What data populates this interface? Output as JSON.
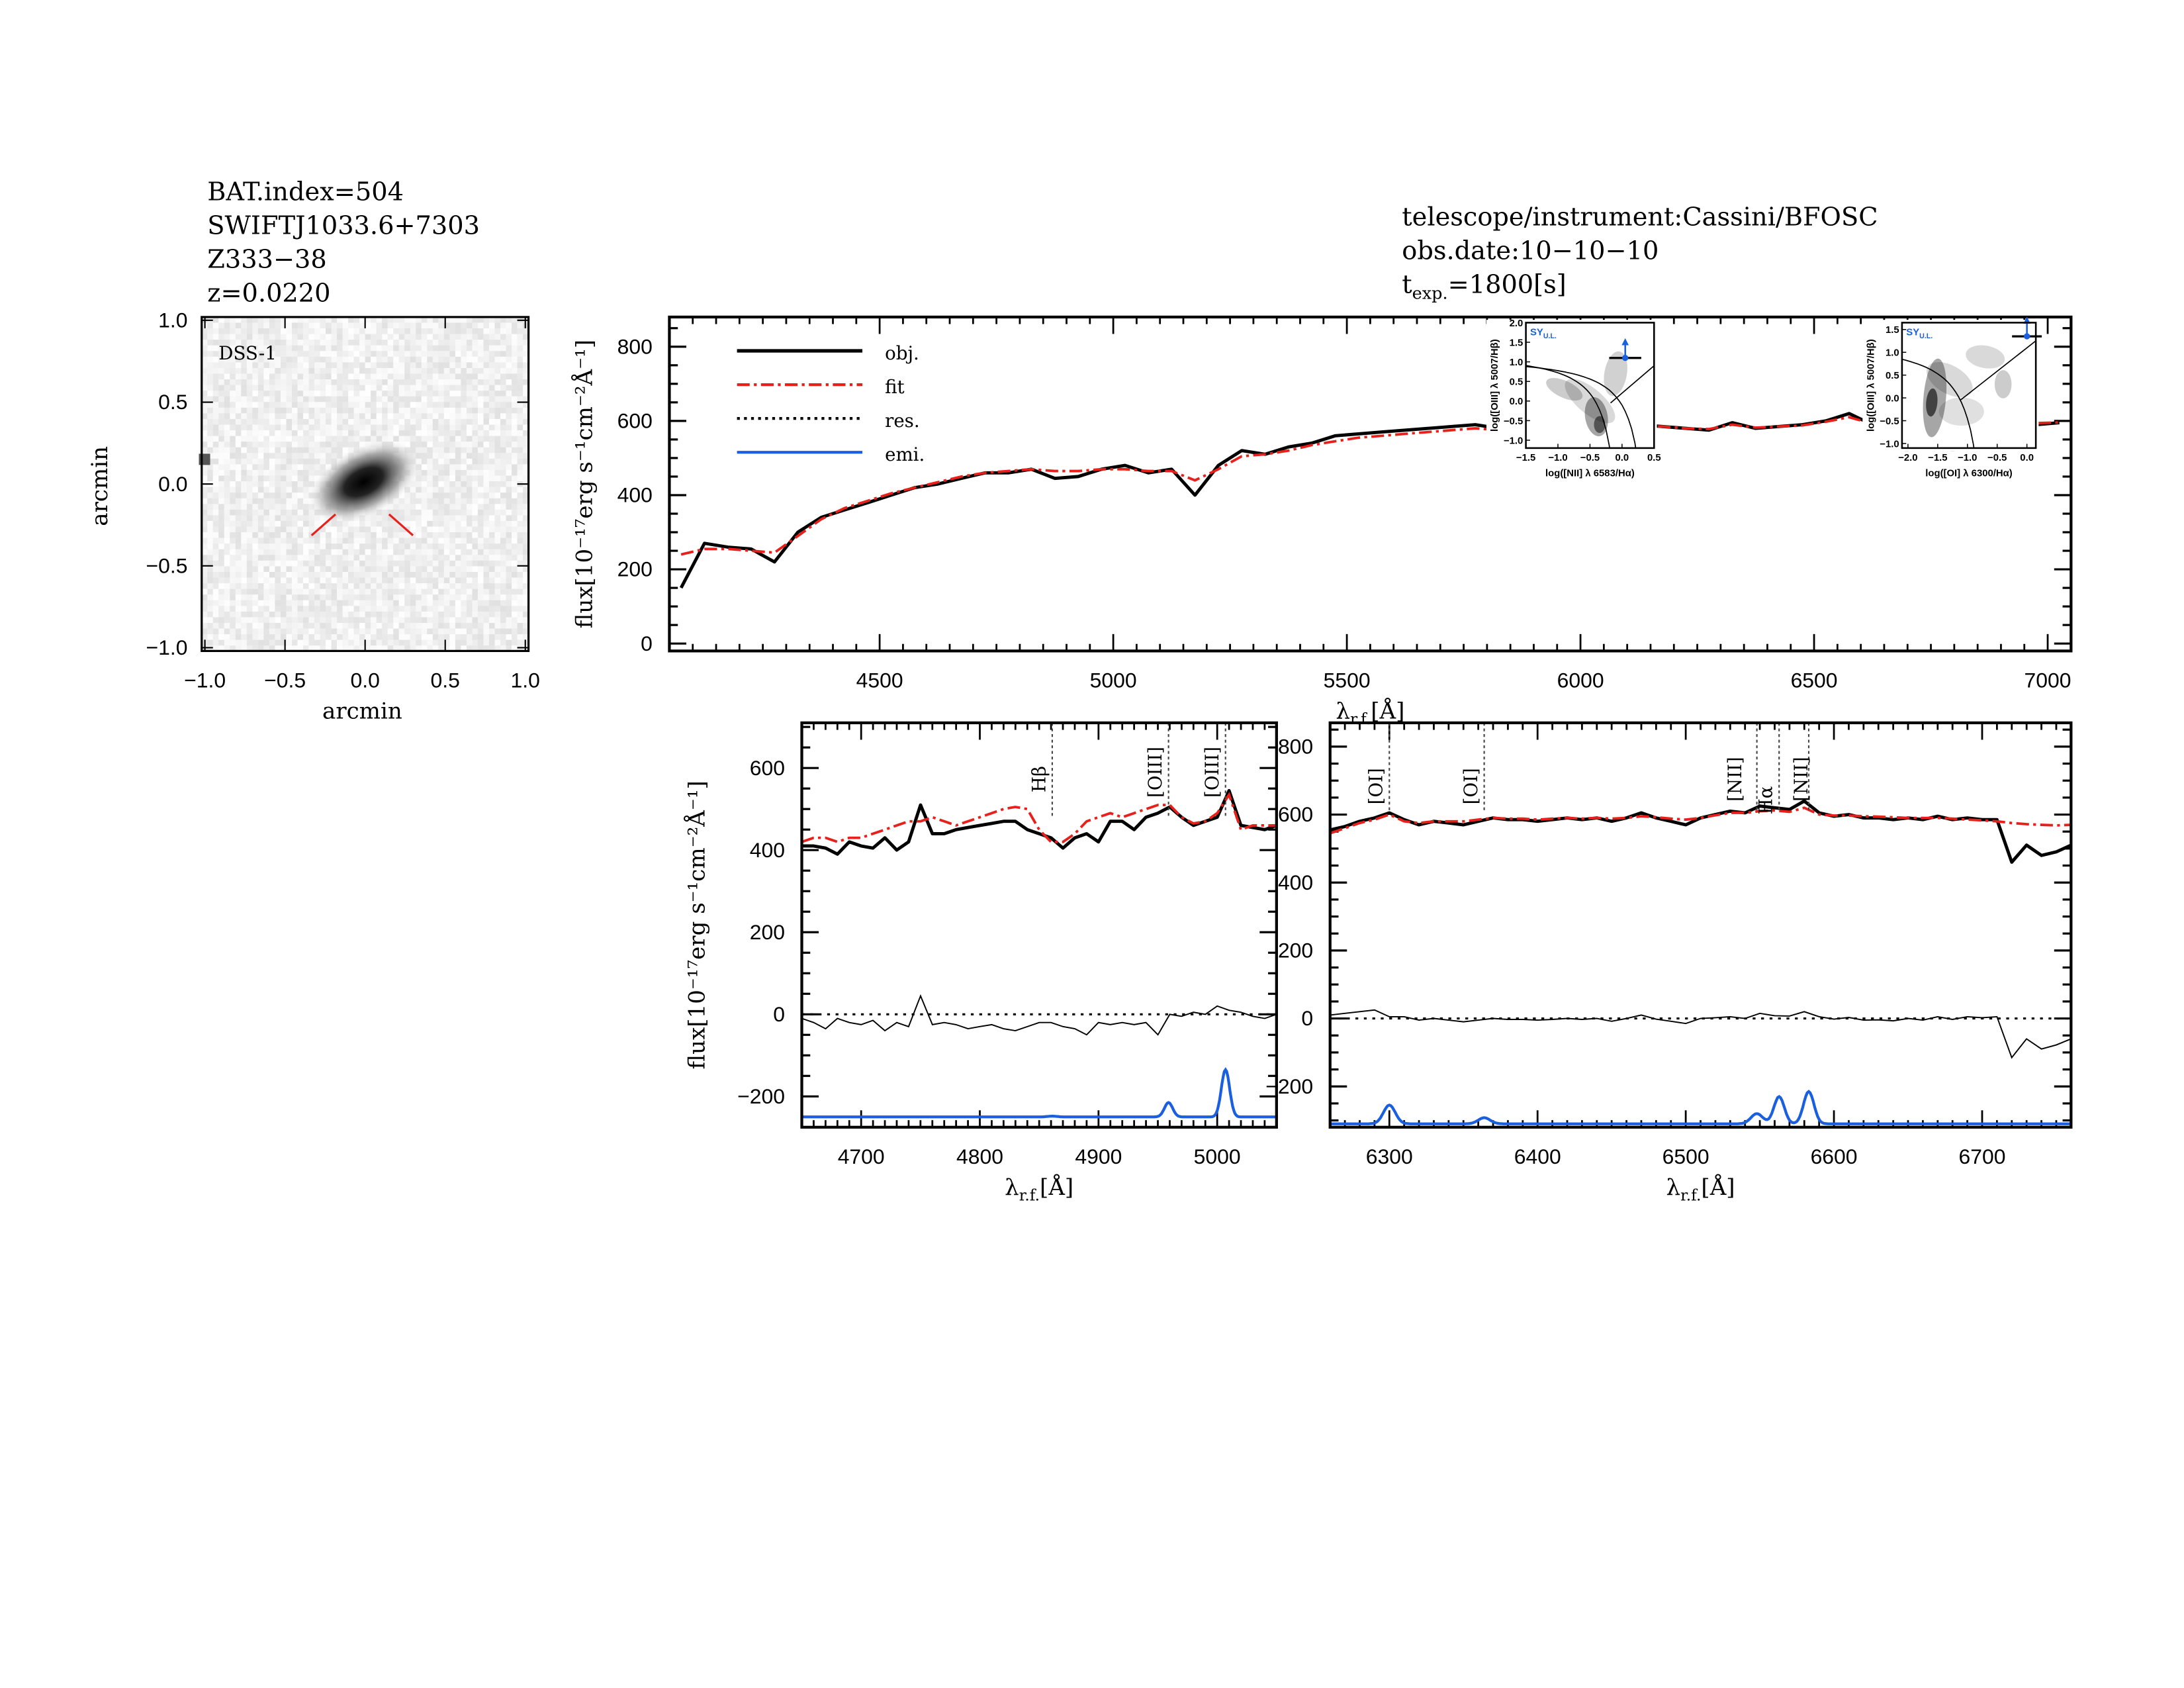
{
  "header_left": {
    "bat_index": "BAT.index=504",
    "swift_name": "SWIFTJ1033.6+7303",
    "galaxy_name": "Z333−38",
    "redshift": "z=0.0220"
  },
  "header_right": {
    "telescope": "telescope/instrument:Cassini/BFOSC",
    "obs_date": "obs.date:10−10−10",
    "texp_prefix": "t",
    "texp_sub": "exp.",
    "texp_value": "=1800[s]"
  },
  "colors": {
    "obj": "#000000",
    "fit": "#e8201c",
    "res": "#000000",
    "emi": "#1a5fe0",
    "line_label_hb": "#e8201c",
    "inset_label": "#1a5fe0"
  },
  "chart_data": [
    {
      "type": "image",
      "title": "DSS-1",
      "xlabel": "arcmin",
      "ylabel": "arcmin",
      "xlim": [
        -1.02,
        1.02
      ],
      "ylim": [
        -1.02,
        1.02
      ],
      "xticks": [
        "-1.0",
        "−0.5",
        "0.0",
        "0.5",
        "1.0"
      ],
      "xtick_values": [
        -1.0,
        -0.5,
        0.0,
        0.5,
        1.0
      ],
      "yticks": [
        "1.0",
        "0.5",
        "0.0",
        "−0.5",
        "−1.0"
      ],
      "ytick_values": [
        1.0,
        0.5,
        0.0,
        -0.5,
        -1.0
      ],
      "xtick_labels_display": [
        "−1.0",
        "−0.5",
        "0.0",
        "0.5",
        "1.0"
      ]
    },
    {
      "type": "line",
      "name": "full-spectrum",
      "xlabel": "λ",
      "xlabel_sub": "r.f.",
      "xlabel_unit": "[Å]",
      "ylabel": "flux[10⁻¹⁷erg s⁻¹cm⁻²Å⁻¹]",
      "xlim": [
        4050,
        7050
      ],
      "ylim": [
        -20,
        880
      ],
      "xticks": [
        4500,
        5000,
        5500,
        6000,
        6500,
        7000
      ],
      "yticks": [
        0,
        200,
        400,
        600,
        800
      ],
      "legend": {
        "placement": "top-left",
        "entries": [
          "obj.",
          "fit",
          "res.",
          "emi."
        ]
      },
      "x_start": 4075,
      "x_step": 50,
      "obj": [
        150,
        270,
        260,
        255,
        220,
        300,
        340,
        360,
        380,
        400,
        420,
        430,
        445,
        460,
        460,
        470,
        445,
        450,
        470,
        480,
        460,
        470,
        400,
        480,
        520,
        510,
        530,
        540,
        560,
        565,
        570,
        575,
        580,
        585,
        590,
        580,
        560,
        575,
        570,
        590,
        575,
        590,
        585,
        580,
        575,
        595,
        580,
        585,
        590,
        600,
        620,
        590,
        580,
        450,
        490,
        560,
        540,
        580,
        590,
        595
      ],
      "fit": [
        240,
        255,
        255,
        250,
        245,
        290,
        335,
        365,
        385,
        405,
        420,
        435,
        450,
        460,
        465,
        470,
        465,
        465,
        470,
        470,
        465,
        465,
        440,
        470,
        505,
        510,
        520,
        535,
        545,
        555,
        560,
        565,
        570,
        575,
        580,
        575,
        570,
        570,
        572,
        580,
        578,
        585,
        585,
        580,
        578,
        590,
        582,
        585,
        588,
        598,
        610,
        592,
        585,
        580,
        585,
        588,
        590,
        592,
        594,
        596
      ]
    },
    {
      "type": "line",
      "name": "hbeta-oiii-zoom",
      "xlabel": "λ",
      "xlabel_sub": "r.f.",
      "xlabel_unit": "[Å]",
      "ylabel": "flux[10⁻¹⁷erg s⁻¹cm⁻²Å⁻¹]",
      "xlim": [
        4650,
        5050
      ],
      "ylim": [
        -275,
        710
      ],
      "xticks": [
        4700,
        4800,
        4900,
        5000
      ],
      "yticks": [
        -200,
        0,
        200,
        400,
        600
      ],
      "x_start": 4650,
      "x_step": 10,
      "obj": [
        410,
        410,
        405,
        390,
        420,
        410,
        405,
        430,
        400,
        420,
        510,
        440,
        440,
        450,
        455,
        460,
        465,
        470,
        470,
        450,
        440,
        430,
        405,
        430,
        440,
        420,
        470,
        470,
        450,
        480,
        490,
        505,
        480,
        460,
        470,
        480,
        545,
        460,
        455,
        450,
        460
      ],
      "fit": [
        420,
        430,
        430,
        420,
        430,
        430,
        440,
        450,
        460,
        470,
        470,
        480,
        470,
        460,
        470,
        480,
        490,
        500,
        505,
        500,
        450,
        420,
        420,
        440,
        470,
        480,
        490,
        480,
        490,
        500,
        510,
        510,
        480,
        465,
        470,
        490,
        535,
        450,
        460,
        460,
        460
      ],
      "res": [
        -10,
        -20,
        -35,
        -10,
        -20,
        -25,
        -15,
        -40,
        -20,
        -30,
        45,
        -25,
        -20,
        -25,
        -35,
        -30,
        -25,
        -35,
        -40,
        -30,
        -20,
        -20,
        -30,
        -35,
        -50,
        -20,
        -25,
        -20,
        -25,
        -20,
        -50,
        0,
        -5,
        5,
        0,
        20,
        10,
        5,
        -5,
        -10,
        0
      ],
      "emi_baseline": -250,
      "emi_lines": [
        {
          "center": 4861,
          "amp": 2,
          "sigma": 4
        },
        {
          "center": 4959,
          "amp": 35,
          "sigma": 3.5
        },
        {
          "center": 5007,
          "amp": 115,
          "sigma": 3.5
        }
      ],
      "line_markers": [
        {
          "label": "Hβ",
          "wave": 4861,
          "color": "red"
        },
        {
          "label": "[OIII]",
          "wave": 4959
        },
        {
          "label": "[OIII]",
          "wave": 5007
        }
      ]
    },
    {
      "type": "line",
      "name": "halpha-nii-zoom",
      "xlabel": "λ",
      "xlabel_sub": "r.f.",
      "xlabel_unit": "[Å]",
      "xlim": [
        6260,
        6760
      ],
      "ylim": [
        -320,
        870
      ],
      "xticks": [
        6300,
        6400,
        6500,
        6600,
        6700
      ],
      "yticks": [
        -200,
        0,
        200,
        400,
        600,
        800
      ],
      "x_start": 6260,
      "x_step": 10,
      "obj": [
        555,
        565,
        580,
        590,
        605,
        585,
        570,
        580,
        575,
        570,
        580,
        590,
        585,
        585,
        580,
        585,
        590,
        585,
        590,
        580,
        590,
        605,
        590,
        580,
        570,
        590,
        600,
        610,
        605,
        625,
        620,
        615,
        640,
        605,
        595,
        600,
        590,
        590,
        585,
        590,
        585,
        595,
        585,
        590,
        585,
        585,
        460,
        510,
        480,
        490,
        510
      ],
      "fit": [
        545,
        560,
        575,
        585,
        600,
        580,
        575,
        580,
        580,
        580,
        585,
        590,
        588,
        588,
        585,
        588,
        590,
        588,
        590,
        588,
        590,
        595,
        592,
        588,
        585,
        590,
        598,
        605,
        605,
        610,
        612,
        608,
        620,
        600,
        597,
        597,
        595,
        594,
        592,
        590,
        590,
        590,
        588,
        585,
        583,
        580,
        575,
        572,
        570,
        568,
        570
      ],
      "res": [
        10,
        15,
        20,
        25,
        5,
        5,
        -5,
        0,
        -5,
        -10,
        -5,
        0,
        -3,
        -3,
        -5,
        -3,
        0,
        -3,
        0,
        -8,
        0,
        10,
        -2,
        -8,
        -15,
        0,
        2,
        5,
        0,
        15,
        8,
        7,
        20,
        5,
        -2,
        3,
        -5,
        -4,
        -7,
        0,
        -5,
        5,
        -3,
        5,
        2,
        5,
        -115,
        -60,
        -90,
        -78,
        -60
      ],
      "emi_baseline": -310,
      "emi_lines": [
        {
          "center": 6300,
          "amp": 55,
          "sigma": 4
        },
        {
          "center": 6364,
          "amp": 18,
          "sigma": 4
        },
        {
          "center": 6548,
          "amp": 30,
          "sigma": 4
        },
        {
          "center": 6563,
          "amp": 80,
          "sigma": 3.5
        },
        {
          "center": 6583,
          "amp": 95,
          "sigma": 3.5
        }
      ],
      "line_markers": [
        {
          "label": "[OI]",
          "wave": 6300
        },
        {
          "label": "[OI]",
          "wave": 6364
        },
        {
          "label": "[NII]",
          "wave": 6548
        },
        {
          "label": "Hα",
          "wave": 6563
        },
        {
          "label": "[NII]",
          "wave": 6583
        }
      ]
    },
    {
      "type": "scatter",
      "name": "bpt-nii",
      "label": "SY",
      "label_sub": "U.L.",
      "xlabel": "log([NII] λ 6583/Hα)",
      "ylabel": "log([OIII] λ 5007/Hβ)",
      "xlim": [
        -1.5,
        0.5
      ],
      "ylim": [
        -1.2,
        2.0
      ],
      "xticks": [
        "−1.5",
        "−1.0",
        "−0.5",
        "0.0",
        "0.5"
      ],
      "xtick_values": [
        -1.5,
        -1.0,
        -0.5,
        0.0,
        0.5
      ],
      "yticks": [
        "−1.0",
        "−0.5",
        "0.0",
        "0.5",
        "1.0",
        "1.5",
        "2.0"
      ],
      "ytick_values": [
        -1.0,
        -0.5,
        0.0,
        0.5,
        1.0,
        1.5,
        2.0
      ],
      "point": {
        "x": 0.05,
        "y": 1.1,
        "xerr": 0.25,
        "upper_limit": true
      }
    },
    {
      "type": "scatter",
      "name": "bpt-oi",
      "label": "SY",
      "label_sub": "U.L.",
      "xlabel": "log([OI] λ 6300/Hα)",
      "ylabel": "log([OIII] λ 5007/Hβ)",
      "xlim": [
        -2.1,
        0.15
      ],
      "ylim": [
        -1.1,
        1.65
      ],
      "xticks": [
        "−2.0",
        "−1.5",
        "−1.0",
        "−0.5",
        "0.0"
      ],
      "xtick_values": [
        -2.0,
        -1.5,
        -1.0,
        -0.5,
        0.0
      ],
      "yticks": [
        "−1.0",
        "−0.5",
        "0.0",
        "0.5",
        "1.0",
        "1.5"
      ],
      "ytick_values": [
        -1.0,
        -0.5,
        0.0,
        0.5,
        1.0,
        1.5
      ],
      "point": {
        "x": 0.0,
        "y": 1.35,
        "xerr": 0.25,
        "upper_limit": true
      }
    }
  ]
}
